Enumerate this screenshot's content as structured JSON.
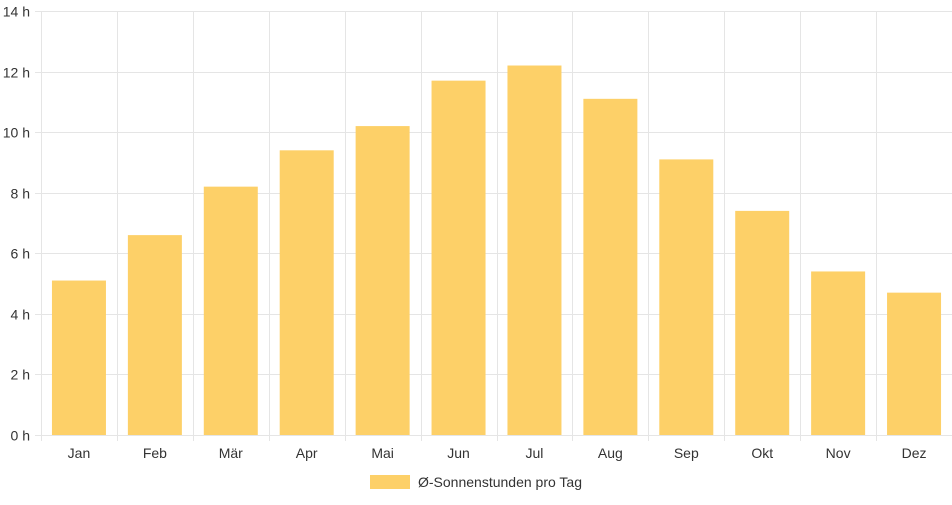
{
  "chart_data": {
    "type": "bar",
    "categories": [
      "Jan",
      "Feb",
      "Mär",
      "Apr",
      "Mai",
      "Jun",
      "Jul",
      "Aug",
      "Sep",
      "Okt",
      "Nov",
      "Dez"
    ],
    "series": [
      {
        "name": "Ø-Sonnenstunden pro Tag",
        "values": [
          5.1,
          6.6,
          8.2,
          9.4,
          10.2,
          11.7,
          12.2,
          11.1,
          9.1,
          7.4,
          5.4,
          4.7
        ],
        "color": "#fdd068"
      }
    ],
    "ylim": [
      0,
      14
    ],
    "y_ticks": [
      "0 h",
      "2 h",
      "4 h",
      "6 h",
      "8 h",
      "10 h",
      "12 h",
      "14 h"
    ],
    "y_tick_values": [
      0,
      2,
      4,
      6,
      8,
      10,
      12,
      14
    ],
    "grid": true,
    "legend": "bottom-center",
    "title": "",
    "xlabel": "",
    "ylabel": ""
  },
  "colors": {
    "grid": "#e5e5e5",
    "axis_text": "#333333"
  }
}
